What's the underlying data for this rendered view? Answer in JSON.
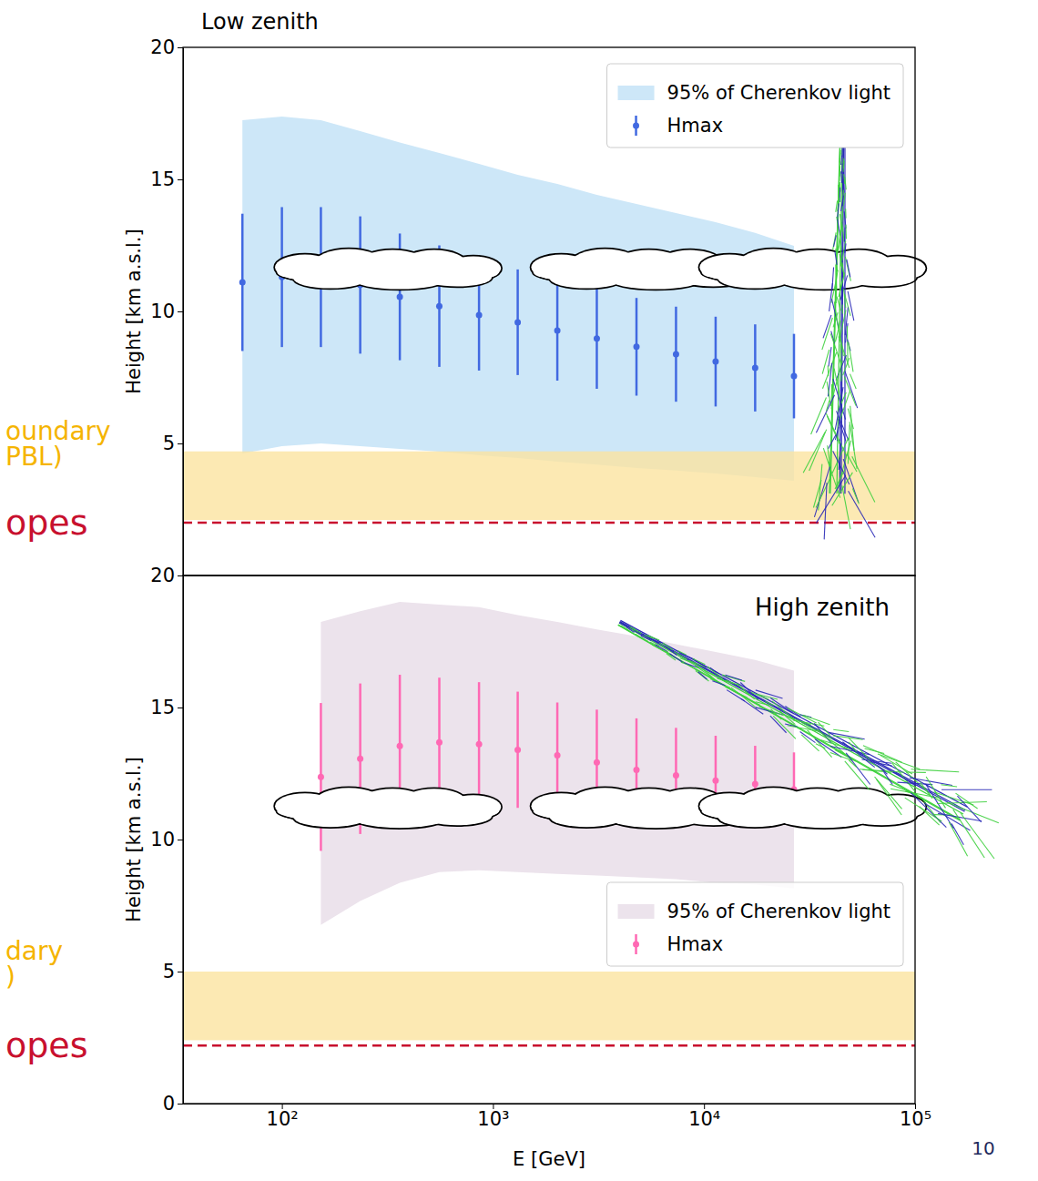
{
  "page_number": 10,
  "chart_data": [
    {
      "type": "errorbar",
      "title": "Low zenith",
      "y_label": "Height [km a.s.l.]",
      "log": "x",
      "xlim": [
        34,
        100000
      ],
      "ylim": [
        0,
        20
      ],
      "yticks": [
        5,
        10,
        15,
        20
      ],
      "tick_labels": "y",
      "legend": "upper right",
      "series": [
        {
          "name": "95% of Cherenkov light",
          "type": "area",
          "color": "#cde7f8",
          "x": [
            65,
            100,
            153,
            235,
            362,
            557,
            859,
            1310,
            2018,
            3105,
            4786,
            7367,
            11350,
            17470,
            26680
          ],
          "upper": [
            17.24,
            17.38,
            17.24,
            16.83,
            16.4,
            16.0,
            15.59,
            15.17,
            14.83,
            14.41,
            14.07,
            13.72,
            13.38,
            12.97,
            12.48
          ],
          "lower": [
            4.62,
            4.9,
            5.0,
            4.9,
            4.79,
            4.69,
            4.55,
            4.45,
            4.31,
            4.2,
            4.07,
            3.97,
            3.86,
            3.72,
            3.59
          ]
        },
        {
          "name": "Hmax",
          "type": "errorbar",
          "marker": "circle",
          "color": "#4169e1",
          "x": [
            65,
            100,
            153,
            235,
            362,
            557,
            859,
            1310,
            2018,
            3105,
            4786,
            7367,
            11350,
            17470,
            26680
          ],
          "values": [
            11.1,
            11.3,
            11.3,
            11.0,
            10.55,
            10.2,
            9.86,
            9.59,
            9.28,
            8.97,
            8.66,
            8.38,
            8.1,
            7.86,
            7.55
          ],
          "errors": [
            2.6,
            2.65,
            2.65,
            2.6,
            2.4,
            2.3,
            2.1,
            2.0,
            1.9,
            1.9,
            1.85,
            1.8,
            1.7,
            1.65,
            1.6
          ]
        }
      ],
      "pbl": {
        "lower": 2.1,
        "upper": 4.7,
        "color": "#fbe3a0",
        "labels": [
          "oundary",
          "PBL)"
        ]
      },
      "telescopes": {
        "height": 2.0,
        "color": "#c8102e",
        "line_style": "dashed",
        "label": "opes"
      }
    },
    {
      "type": "errorbar",
      "title": "High zenith",
      "x_label": "E [GeV]",
      "y_label": "Height [km a.s.l.]",
      "log": "x",
      "xlim": [
        34,
        100000
      ],
      "ylim": [
        0,
        20
      ],
      "yticks": [
        0,
        5,
        10,
        15,
        20
      ],
      "xticks": [
        {
          "value": 100,
          "label": "10²"
        },
        {
          "value": 1000,
          "label": "10³"
        },
        {
          "value": 10000,
          "label": "10⁴"
        },
        {
          "value": 100000,
          "label": "10⁵"
        }
      ],
      "tick_labels": true,
      "legend": "lower right",
      "series": [
        {
          "name": "95% of Cherenkov light",
          "type": "area",
          "color": "#ece3ec",
          "x": [
            153,
            235,
            362,
            557,
            859,
            1310,
            2018,
            3105,
            4786,
            7367,
            11350,
            17470,
            26680
          ],
          "upper": [
            18.24,
            18.65,
            19.0,
            18.9,
            18.8,
            18.5,
            18.24,
            17.96,
            17.7,
            17.4,
            17.1,
            16.8,
            16.4
          ],
          "lower": [
            6.77,
            7.67,
            8.36,
            8.77,
            8.84,
            8.77,
            8.7,
            8.64,
            8.57,
            8.5,
            8.36,
            8.29,
            8.15
          ]
        },
        {
          "name": "Hmax",
          "type": "errorbar",
          "marker": "circle",
          "color": "#ff69b4",
          "x": [
            153,
            235,
            362,
            557,
            859,
            1310,
            2018,
            3105,
            4786,
            7367,
            11350,
            17470,
            26680
          ],
          "values": [
            12.37,
            13.06,
            13.54,
            13.68,
            13.61,
            13.4,
            13.19,
            12.92,
            12.64,
            12.43,
            12.23,
            12.1,
            11.9
          ],
          "errors": [
            2.8,
            2.85,
            2.7,
            2.45,
            2.35,
            2.2,
            2.0,
            2.0,
            1.95,
            1.8,
            1.7,
            1.45,
            1.4
          ]
        }
      ],
      "pbl": {
        "lower": 2.4,
        "upper": 5.0,
        "color": "#fbe3a0",
        "labels": [
          "dary",
          ")"
        ]
      },
      "telescopes": {
        "height": 2.2,
        "color": "#c8102e",
        "line_style": "dashed",
        "label": "opes"
      }
    }
  ]
}
